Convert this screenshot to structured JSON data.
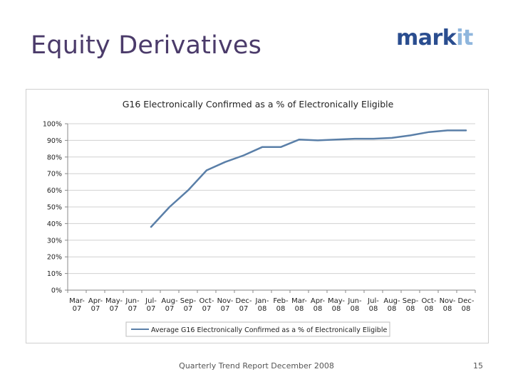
{
  "slide": {
    "title": "Equity Derivatives",
    "logo_part1": "mark",
    "logo_part2": "it",
    "footer": "Quarterly Trend Report December 2008",
    "page_number": "15"
  },
  "colors": {
    "title": "#4b3b6a",
    "logo_dark": "#2a4d8f",
    "logo_light": "#8fb6dd",
    "series_line": "#5a7fa8"
  },
  "chart_data": {
    "type": "line",
    "title": "G16 Electronically Confirmed as a % of Electronically Eligible",
    "xlabel": "",
    "ylabel": "",
    "ylim": [
      0,
      100
    ],
    "yticks": [
      "0%",
      "10%",
      "20%",
      "30%",
      "40%",
      "50%",
      "60%",
      "70%",
      "80%",
      "90%",
      "100%"
    ],
    "grid": true,
    "legend_position": "bottom",
    "categories": [
      [
        "Mar-",
        "07"
      ],
      [
        "Apr-",
        "07"
      ],
      [
        "May-",
        "07"
      ],
      [
        "Jun-",
        "07"
      ],
      [
        "Jul-",
        "07"
      ],
      [
        "Aug-",
        "07"
      ],
      [
        "Sep-",
        "07"
      ],
      [
        "Oct-",
        "07"
      ],
      [
        "Nov-",
        "07"
      ],
      [
        "Dec-",
        "07"
      ],
      [
        "Jan-",
        "08"
      ],
      [
        "Feb-",
        "08"
      ],
      [
        "Mar-",
        "08"
      ],
      [
        "Apr-",
        "08"
      ],
      [
        "May-",
        "08"
      ],
      [
        "Jun-",
        "08"
      ],
      [
        "Jul-",
        "08"
      ],
      [
        "Aug-",
        "08"
      ],
      [
        "Sep-",
        "08"
      ],
      [
        "Oct-",
        "08"
      ],
      [
        "Nov-",
        "08"
      ],
      [
        "Dec-",
        "08"
      ]
    ],
    "series": [
      {
        "name": "Average G16 Electronically Confirmed as a % of Electronically Eligible",
        "values": [
          null,
          null,
          null,
          null,
          38,
          50,
          60,
          72,
          77,
          81,
          86,
          86,
          90.5,
          90,
          90.5,
          91,
          91,
          91.5,
          93,
          95,
          96,
          96
        ]
      }
    ]
  }
}
